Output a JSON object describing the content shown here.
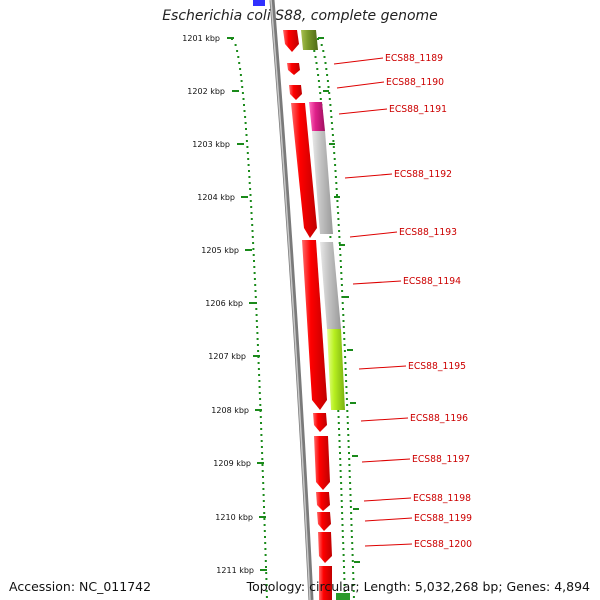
{
  "title": "Escherichia coli S88, complete genome",
  "footer": {
    "accession": "Accession: NC_011742",
    "topology": "Topology: circular; Length: 5,032,268 bp; Genes: 4,894"
  },
  "axis": {
    "unit": "kbp",
    "ticks": [
      "1201 kbp",
      "1202 kbp",
      "1203 kbp",
      "1204 kbp",
      "1205 kbp",
      "1206 kbp",
      "1207 kbp",
      "1208 kbp",
      "1209 kbp",
      "1210 kbp",
      "1211 kbp"
    ]
  },
  "genes": [
    {
      "label": "ECS88_1189"
    },
    {
      "label": "ECS88_1190"
    },
    {
      "label": "ECS88_1191"
    },
    {
      "label": "ECS88_1192"
    },
    {
      "label": "ECS88_1193"
    },
    {
      "label": "ECS88_1194"
    },
    {
      "label": "ECS88_1195"
    },
    {
      "label": "ECS88_1196"
    },
    {
      "label": "ECS88_1197"
    },
    {
      "label": "ECS88_1198"
    },
    {
      "label": "ECS88_1199"
    },
    {
      "label": "ECS88_1200"
    }
  ],
  "colors": {
    "gene_forward": "#ff0000",
    "label_text": "#cc0000",
    "tick_mark": "#1a8a1a",
    "backbone": "#7a7a7a",
    "feature_olive": "#7a9a2a",
    "feature_magenta": "#e0208a",
    "feature_gray": "#c0c0c0",
    "feature_lime": "#b8f020",
    "feature_blue": "#3030ff"
  }
}
